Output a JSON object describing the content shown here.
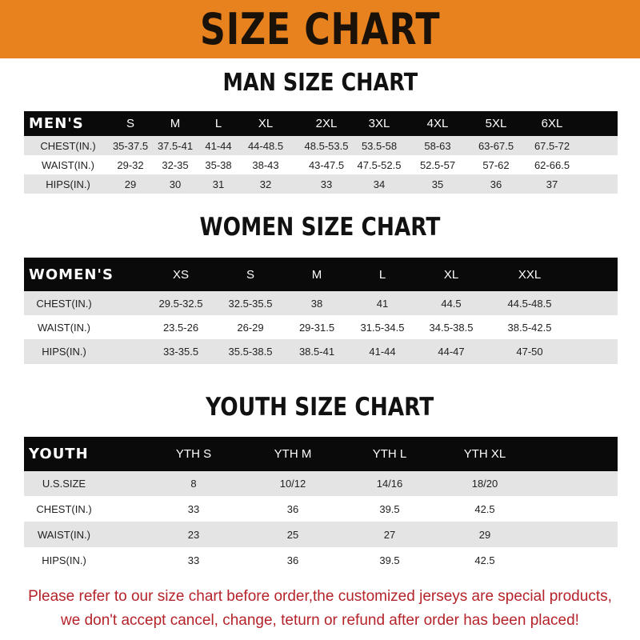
{
  "banner_title": "SIZE CHART",
  "colors": {
    "banner": "#e8821e",
    "note": "#b5232a",
    "header_row": "#0a0a0a",
    "stripe": "#e4e4e4"
  },
  "men": {
    "title": "MAN SIZE CHART",
    "header": [
      "MEN'S",
      "S",
      "M",
      "L",
      "XL",
      "2XL",
      "3XL",
      "4XL",
      "5XL",
      "6XL"
    ],
    "rows": [
      [
        "CHEST(IN.)",
        "35-37.5",
        "37.5-41",
        "41-44",
        "44-48.5",
        "48.5-53.5",
        "53.5-58",
        "58-63",
        "63-67.5",
        "67.5-72"
      ],
      [
        "WAIST(IN.)",
        "29-32",
        "32-35",
        "35-38",
        "38-43",
        "43-47.5",
        "47.5-52.5",
        "52.5-57",
        "57-62",
        "62-66.5"
      ],
      [
        "HIPS(IN.)",
        "29",
        "30",
        "31",
        "32",
        "33",
        "34",
        "35",
        "36",
        "37"
      ]
    ]
  },
  "women": {
    "title": "WOMEN SIZE CHART",
    "header": [
      "WOMEN'S",
      "XS",
      "S",
      "M",
      "L",
      "XL",
      "XXL"
    ],
    "rows": [
      [
        "CHEST(IN.)",
        "29.5-32.5",
        "32.5-35.5",
        "38",
        "41",
        "44.5",
        "44.5-48.5"
      ],
      [
        "WAIST(IN.)",
        "23.5-26",
        "26-29",
        "29-31.5",
        "31.5-34.5",
        "34.5-38.5",
        "38.5-42.5"
      ],
      [
        "HIPS(IN.)",
        "33-35.5",
        "35.5-38.5",
        "38.5-41",
        "41-44",
        "44-47",
        "47-50"
      ]
    ]
  },
  "youth": {
    "title": "YOUTH SIZE CHART",
    "header": [
      "YOUTH",
      "YTH S",
      "YTH M",
      "YTH L",
      "YTH XL"
    ],
    "rows": [
      [
        "U.S.SIZE",
        "8",
        "10/12",
        "14/16",
        "18/20"
      ],
      [
        "CHEST(IN.)",
        "33",
        "36",
        "39.5",
        "42.5"
      ],
      [
        "WAIST(IN.)",
        "23",
        "25",
        "27",
        "29"
      ],
      [
        "HIPS(IN.)",
        "33",
        "36",
        "39.5",
        "42.5"
      ]
    ]
  },
  "note": [
    "Please refer to our size chart before order,the customized jerseys are special products,",
    "we don't accept cancel, change, teturn or refund after order has been placed!"
  ]
}
